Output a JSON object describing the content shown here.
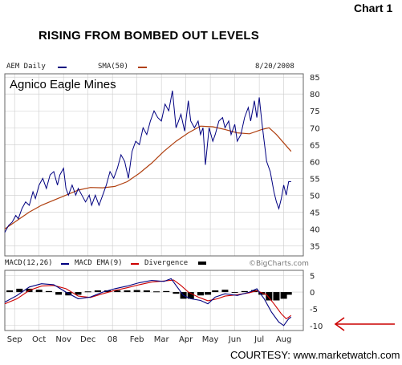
{
  "page": {
    "chart_label": "Chart 1",
    "headline": "RISING FROM BOMBED OUT LEVELS",
    "courtesy": "COURTESY: www.marketwatch.com",
    "watermark": "©BigCharts.com"
  },
  "colors": {
    "price": "#000080",
    "sma": "#b04010",
    "macd": "#000080",
    "macd_ema": "#cc0000",
    "divergence": "#000000",
    "arrow": "#cc0000",
    "panel_bg": "#ffffff",
    "grid": "#cccccc",
    "frame": "#666666"
  },
  "chart_data": [
    {
      "type": "line",
      "legend": {
        "price_label": "AEM Daily",
        "sma_label": "SMA(50)",
        "date": "8/20/2008"
      },
      "stock_label": "Agnico Eagle Mines",
      "x_ticks": [
        "Sep",
        "Oct",
        "Nov",
        "Dec",
        "08",
        "Feb",
        "Mar",
        "Apr",
        "May",
        "Jun",
        "Jul",
        "Aug"
      ],
      "y_ticks": [
        35,
        40,
        45,
        50,
        55,
        60,
        65,
        70,
        75,
        80,
        85
      ],
      "ylim": [
        32,
        86
      ],
      "x_range": [
        0,
        12.2
      ],
      "grid": true,
      "series": [
        {
          "name": "AEM Daily",
          "points": [
            [
              0.0,
              39
            ],
            [
              0.15,
              41
            ],
            [
              0.3,
              42
            ],
            [
              0.45,
              44
            ],
            [
              0.55,
              43
            ],
            [
              0.7,
              46
            ],
            [
              0.85,
              48
            ],
            [
              1.0,
              47
            ],
            [
              1.15,
              51
            ],
            [
              1.25,
              49
            ],
            [
              1.4,
              53
            ],
            [
              1.55,
              55
            ],
            [
              1.7,
              52
            ],
            [
              1.85,
              56
            ],
            [
              2.0,
              57
            ],
            [
              2.15,
              53
            ],
            [
              2.25,
              56
            ],
            [
              2.4,
              58
            ],
            [
              2.5,
              52
            ],
            [
              2.6,
              50
            ],
            [
              2.75,
              53
            ],
            [
              2.9,
              50
            ],
            [
              3.0,
              52
            ],
            [
              3.15,
              50
            ],
            [
              3.3,
              48
            ],
            [
              3.45,
              50
            ],
            [
              3.55,
              47
            ],
            [
              3.7,
              50
            ],
            [
              3.85,
              47
            ],
            [
              4.0,
              50
            ],
            [
              4.15,
              53
            ],
            [
              4.3,
              57
            ],
            [
              4.45,
              55
            ],
            [
              4.6,
              58
            ],
            [
              4.75,
              62
            ],
            [
              4.9,
              60
            ],
            [
              5.05,
              55
            ],
            [
              5.2,
              63
            ],
            [
              5.35,
              66
            ],
            [
              5.5,
              65
            ],
            [
              5.65,
              70
            ],
            [
              5.8,
              68
            ],
            [
              5.95,
              72
            ],
            [
              6.1,
              75
            ],
            [
              6.25,
              73
            ],
            [
              6.4,
              72
            ],
            [
              6.55,
              77
            ],
            [
              6.7,
              75
            ],
            [
              6.85,
              81
            ],
            [
              7.0,
              70
            ],
            [
              7.1,
              72
            ],
            [
              7.2,
              74
            ],
            [
              7.35,
              69
            ],
            [
              7.5,
              78
            ],
            [
              7.6,
              72
            ],
            [
              7.75,
              70
            ],
            [
              7.9,
              72
            ],
            [
              8.0,
              68
            ],
            [
              8.1,
              70
            ],
            [
              8.2,
              59
            ],
            [
              8.35,
              70
            ],
            [
              8.5,
              66
            ],
            [
              8.6,
              68
            ],
            [
              8.75,
              72
            ],
            [
              8.9,
              73
            ],
            [
              9.0,
              70
            ],
            [
              9.15,
              72
            ],
            [
              9.25,
              68
            ],
            [
              9.4,
              71
            ],
            [
              9.5,
              66
            ],
            [
              9.65,
              68
            ],
            [
              9.8,
              73
            ],
            [
              9.95,
              76
            ],
            [
              10.05,
              72
            ],
            [
              10.2,
              78
            ],
            [
              10.3,
              73
            ],
            [
              10.4,
              79
            ],
            [
              10.5,
              72
            ],
            [
              10.6,
              66
            ],
            [
              10.7,
              60
            ],
            [
              10.85,
              57
            ],
            [
              11.0,
              51
            ],
            [
              11.1,
              48
            ],
            [
              11.2,
              46
            ],
            [
              11.3,
              49
            ],
            [
              11.4,
              53
            ],
            [
              11.5,
              50
            ],
            [
              11.6,
              54
            ],
            [
              11.7,
              54
            ]
          ]
        },
        {
          "name": "SMA(50)",
          "points": [
            [
              0.0,
              40
            ],
            [
              0.5,
              42.5
            ],
            [
              1.0,
              45
            ],
            [
              1.5,
              47
            ],
            [
              2.0,
              48.5
            ],
            [
              2.5,
              50
            ],
            [
              3.0,
              51.5
            ],
            [
              3.5,
              52.3
            ],
            [
              4.0,
              52.2
            ],
            [
              4.5,
              52.6
            ],
            [
              5.0,
              54
            ],
            [
              5.5,
              56.5
            ],
            [
              6.0,
              59.5
            ],
            [
              6.5,
              63
            ],
            [
              7.0,
              66
            ],
            [
              7.5,
              68.5
            ],
            [
              8.0,
              70.5
            ],
            [
              8.5,
              70.3
            ],
            [
              9.0,
              69.5
            ],
            [
              9.5,
              68.5
            ],
            [
              10.0,
              68.2
            ],
            [
              10.5,
              69.5
            ],
            [
              10.8,
              70
            ],
            [
              11.1,
              68
            ],
            [
              11.4,
              65.5
            ],
            [
              11.7,
              63
            ]
          ]
        }
      ]
    },
    {
      "type": "line",
      "legend": {
        "macd_label": "MACD(12,26)",
        "ema_label": "MACD EMA(9)",
        "divergence_label": "Divergence"
      },
      "y_ticks": [
        5,
        0,
        -5,
        -10
      ],
      "ylim": [
        -11.5,
        6.5
      ],
      "x_range": [
        0,
        12.2
      ],
      "series": [
        {
          "name": "MACD(12,26)",
          "points": [
            [
              0.0,
              -3
            ],
            [
              0.5,
              -1
            ],
            [
              1.0,
              1.5
            ],
            [
              1.5,
              2.5
            ],
            [
              2.0,
              2.2
            ],
            [
              2.5,
              0
            ],
            [
              3.0,
              -2
            ],
            [
              3.5,
              -1.5
            ],
            [
              4.0,
              0
            ],
            [
              4.5,
              1
            ],
            [
              5.0,
              1.8
            ],
            [
              5.5,
              2.8
            ],
            [
              6.0,
              3.5
            ],
            [
              6.5,
              3.2
            ],
            [
              6.8,
              4
            ],
            [
              7.0,
              2
            ],
            [
              7.3,
              -1
            ],
            [
              7.6,
              -2
            ],
            [
              8.0,
              -2.5
            ],
            [
              8.3,
              -3.5
            ],
            [
              8.6,
              -1.5
            ],
            [
              9.0,
              -0.5
            ],
            [
              9.5,
              -1
            ],
            [
              10.0,
              0
            ],
            [
              10.3,
              1
            ],
            [
              10.6,
              -2
            ],
            [
              10.9,
              -6
            ],
            [
              11.2,
              -9
            ],
            [
              11.4,
              -10
            ],
            [
              11.6,
              -8
            ],
            [
              11.7,
              -7.5
            ]
          ]
        },
        {
          "name": "MACD EMA(9)",
          "points": [
            [
              0.0,
              -3.5
            ],
            [
              0.5,
              -2
            ],
            [
              1.0,
              0.5
            ],
            [
              1.5,
              1.8
            ],
            [
              2.0,
              2
            ],
            [
              2.5,
              1
            ],
            [
              3.0,
              -1.2
            ],
            [
              3.5,
              -1.6
            ],
            [
              4.0,
              -0.5
            ],
            [
              4.5,
              0.5
            ],
            [
              5.0,
              1.3
            ],
            [
              5.5,
              2.2
            ],
            [
              6.0,
              3
            ],
            [
              6.5,
              3.3
            ],
            [
              6.9,
              3.6
            ],
            [
              7.2,
              2
            ],
            [
              7.5,
              0
            ],
            [
              7.9,
              -1.5
            ],
            [
              8.3,
              -2.6
            ],
            [
              8.7,
              -2
            ],
            [
              9.0,
              -1.2
            ],
            [
              9.5,
              -0.8
            ],
            [
              10.0,
              -0.2
            ],
            [
              10.3,
              0.4
            ],
            [
              10.7,
              -0.8
            ],
            [
              11.0,
              -3.5
            ],
            [
              11.3,
              -6.5
            ],
            [
              11.5,
              -8
            ],
            [
              11.7,
              -7
            ]
          ]
        },
        {
          "name": "Divergence",
          "bars": [
            [
              0.2,
              0.5
            ],
            [
              0.6,
              1
            ],
            [
              1.0,
              1
            ],
            [
              1.4,
              0.7
            ],
            [
              1.8,
              0.3
            ],
            [
              2.2,
              -0.8
            ],
            [
              2.6,
              -1
            ],
            [
              3.0,
              -0.8
            ],
            [
              3.4,
              0.2
            ],
            [
              3.8,
              0.5
            ],
            [
              4.2,
              0.5
            ],
            [
              4.6,
              0.5
            ],
            [
              5.0,
              0.5
            ],
            [
              5.4,
              0.6
            ],
            [
              5.8,
              0.5
            ],
            [
              6.2,
              0.2
            ],
            [
              6.6,
              0.3
            ],
            [
              7.0,
              -0.5
            ],
            [
              7.3,
              -2
            ],
            [
              7.6,
              -2
            ],
            [
              8.0,
              -1
            ],
            [
              8.3,
              -0.8
            ],
            [
              8.6,
              0.5
            ],
            [
              9.0,
              0.7
            ],
            [
              9.4,
              -0.2
            ],
            [
              9.8,
              0.3
            ],
            [
              10.2,
              0.6
            ],
            [
              10.5,
              -0.8
            ],
            [
              10.8,
              -2.5
            ],
            [
              11.1,
              -2.5
            ],
            [
              11.4,
              -2
            ],
            [
              11.6,
              -0.8
            ]
          ]
        }
      ]
    }
  ]
}
